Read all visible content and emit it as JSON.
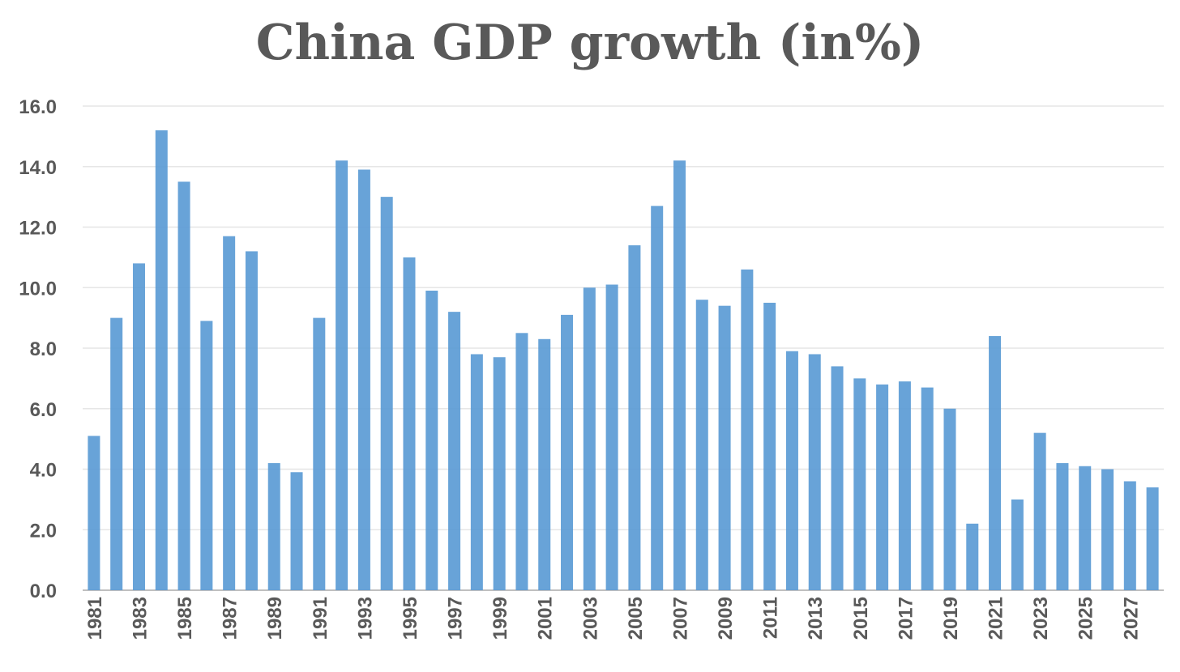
{
  "chart_data": {
    "type": "bar",
    "title": "China GDP growth (in%)",
    "xlabel": "",
    "ylabel": "",
    "ylim": [
      0,
      16
    ],
    "yticks": [
      "0.0",
      "2.0",
      "4.0",
      "6.0",
      "8.0",
      "10.0",
      "12.0",
      "14.0",
      "16.0"
    ],
    "grid": true,
    "bar_color": "#5B9BD5",
    "categories": [
      "1981",
      "1982",
      "1983",
      "1984",
      "1985",
      "1986",
      "1987",
      "1988",
      "1989",
      "1990",
      "1991",
      "1992",
      "1993",
      "1994",
      "1995",
      "1996",
      "1997",
      "1998",
      "1999",
      "2000",
      "2001",
      "2002",
      "2003",
      "2004",
      "2005",
      "2006",
      "2007",
      "2008",
      "2009",
      "2010",
      "2011",
      "2012",
      "2013",
      "2014",
      "2015",
      "2016",
      "2017",
      "2018",
      "2019",
      "2020",
      "2021",
      "2022",
      "2023",
      "2024",
      "2025",
      "2026",
      "2027",
      "2028"
    ],
    "shown_labels": [
      "1981",
      "1983",
      "1985",
      "1987",
      "1989",
      "1991",
      "1993",
      "1995",
      "1997",
      "1999",
      "2001",
      "2003",
      "2005",
      "2007",
      "2009",
      "2011",
      "2013",
      "2015",
      "2017",
      "2019",
      "2021",
      "2023",
      "2025",
      "2027"
    ],
    "values": [
      5.1,
      9.0,
      10.8,
      15.2,
      13.5,
      8.9,
      11.7,
      11.2,
      4.2,
      3.9,
      9.0,
      14.2,
      13.9,
      13.0,
      11.0,
      9.9,
      9.2,
      7.8,
      7.7,
      8.5,
      8.3,
      9.1,
      10.0,
      10.1,
      11.4,
      12.7,
      14.2,
      9.6,
      9.4,
      10.6,
      9.5,
      7.9,
      7.8,
      7.4,
      7.0,
      6.8,
      6.9,
      6.7,
      6.0,
      2.2,
      8.4,
      3.0,
      5.2,
      4.2,
      4.1,
      4.0,
      3.6,
      3.4
    ]
  }
}
